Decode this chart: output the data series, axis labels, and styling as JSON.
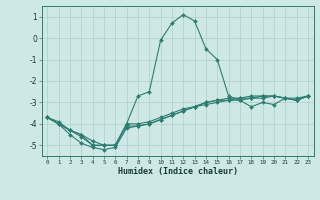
{
  "xlabel": "Humidex (Indice chaleur)",
  "bg_color": "#cde8e5",
  "grid_color": "#aecfcc",
  "line_color": "#2e7d72",
  "xlim": [
    -0.5,
    23.5
  ],
  "ylim": [
    -5.5,
    1.5
  ],
  "yticks": [
    -5,
    -4,
    -3,
    -2,
    -1,
    0,
    1
  ],
  "xticks": [
    0,
    1,
    2,
    3,
    4,
    5,
    6,
    7,
    8,
    9,
    10,
    11,
    12,
    13,
    14,
    15,
    16,
    17,
    18,
    19,
    20,
    21,
    22,
    23
  ],
  "lines": [
    [
      0,
      -3.7,
      1,
      -3.9,
      2,
      -4.3,
      3,
      -4.5,
      4,
      -4.8,
      5,
      -5.0,
      6,
      -5.0,
      7,
      -4.0,
      8,
      -2.7,
      9,
      -2.5,
      10,
      -0.1,
      11,
      0.7,
      12,
      1.1,
      13,
      0.8,
      14,
      -0.5,
      15,
      -1.0,
      16,
      -2.7,
      17,
      -2.9,
      18,
      -3.2,
      19,
      -3.0,
      20,
      -3.1,
      21,
      -2.8,
      22,
      -2.8,
      23,
      -2.7
    ],
    [
      0,
      -3.7,
      1,
      -4.0,
      2,
      -4.3,
      3,
      -4.5,
      4,
      -5.0,
      5,
      -5.0,
      6,
      -5.0,
      7,
      -4.0,
      8,
      -4.0,
      9,
      -3.9,
      10,
      -3.7,
      11,
      -3.5,
      12,
      -3.3,
      13,
      -3.2,
      14,
      -3.0,
      15,
      -2.9,
      16,
      -2.8,
      17,
      -2.8,
      18,
      -2.7,
      19,
      -2.7,
      20,
      -2.7,
      21,
      -2.8,
      22,
      -2.9,
      23,
      -2.7
    ],
    [
      0,
      -3.7,
      1,
      -4.0,
      2,
      -4.3,
      3,
      -4.6,
      4,
      -5.0,
      5,
      -5.0,
      6,
      -5.0,
      7,
      -4.1,
      8,
      -4.1,
      9,
      -4.0,
      10,
      -3.8,
      11,
      -3.6,
      12,
      -3.4,
      13,
      -3.2,
      14,
      -3.0,
      15,
      -2.9,
      16,
      -2.9,
      17,
      -2.8,
      18,
      -2.8,
      19,
      -2.7,
      20,
      -2.7,
      21,
      -2.8,
      22,
      -2.9,
      23,
      -2.7
    ],
    [
      0,
      -3.7,
      1,
      -4.0,
      2,
      -4.5,
      3,
      -4.9,
      4,
      -5.1,
      5,
      -5.2,
      6,
      -5.1,
      7,
      -4.2,
      8,
      -4.1,
      9,
      -4.0,
      10,
      -3.8,
      11,
      -3.6,
      12,
      -3.4,
      13,
      -3.2,
      14,
      -3.1,
      15,
      -3.0,
      16,
      -2.9,
      17,
      -2.9,
      18,
      -2.8,
      19,
      -2.8,
      20,
      -2.7,
      21,
      -2.8,
      22,
      -2.9,
      23,
      -2.7
    ]
  ]
}
